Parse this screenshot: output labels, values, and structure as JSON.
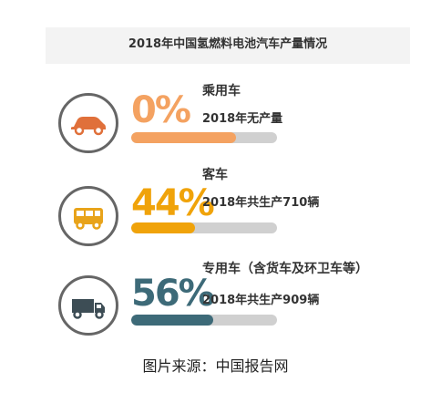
{
  "chart_data": {
    "type": "bar",
    "title": "2018年中国氢燃料电池汽车产量情况",
    "categories": [
      "乘用车",
      "客车",
      "专用车（含货车及环卫车等）"
    ],
    "values": [
      0,
      44,
      56
    ],
    "value_labels": [
      "0%",
      "44%",
      "56%"
    ],
    "details": [
      "2018年无产量",
      "2018年共生产710辆",
      "2018年共生产909辆"
    ],
    "icons": [
      "car-icon",
      "bus-icon",
      "truck-icon"
    ],
    "colors": [
      "#f4a261",
      "#f0a30a",
      "#3d6a78"
    ],
    "bar_track_color": "#d0d0d0",
    "ylim": [
      0,
      100
    ]
  },
  "source_note": "图片来源：中国报告网"
}
